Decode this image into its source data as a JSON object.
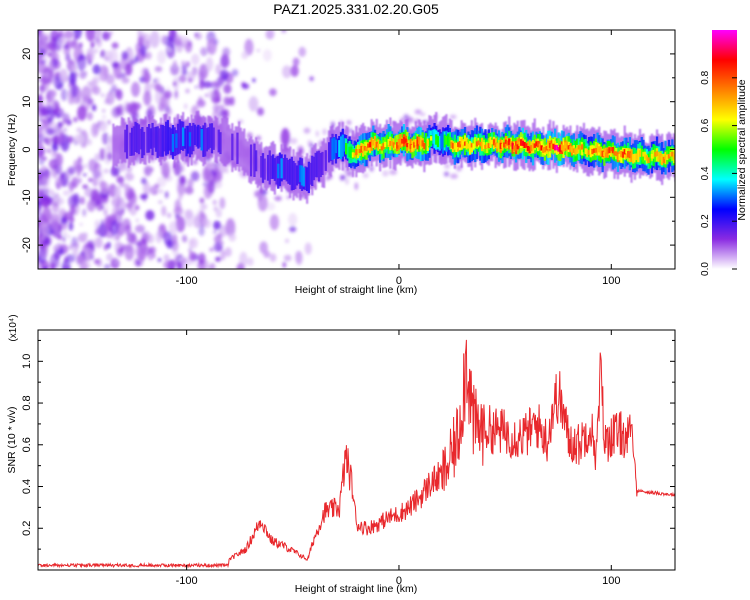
{
  "title": "PAZ1.2025.331.02.20.G05",
  "chart_data": [
    {
      "type": "heatmap",
      "xlabel": "Height of straight line (km)",
      "ylabel": "Frequency (Hz)",
      "xlim": [
        -170,
        130
      ],
      "ylim": [
        -25,
        25
      ],
      "xticks": [
        -100,
        0,
        100
      ],
      "yticks": [
        -20,
        -10,
        0,
        10,
        20
      ],
      "colorbar": {
        "label": "Normalized spectral amplitude",
        "range": [
          0,
          1
        ],
        "ticks": [
          "0.0",
          "0.2",
          "0.4",
          "0.6",
          "0.8"
        ],
        "colors": [
          "#ffffff",
          "#8a2be2",
          "#0000ff",
          "#00ffff",
          "#00ff00",
          "#ffff00",
          "#ff7f00",
          "#ff0000",
          "#ff00ff"
        ]
      },
      "ridge": {
        "x": [
          -135,
          -125,
          -115,
          -105,
          -95,
          -85,
          -75,
          -68,
          -62,
          -56,
          -50,
          -45,
          -40,
          -35,
          -30,
          -25,
          -20,
          -15,
          -10,
          -5,
          0,
          5,
          10,
          15,
          20,
          25,
          35,
          45,
          55,
          65,
          75,
          85,
          95,
          105,
          115,
          130
        ],
        "y": [
          1,
          2,
          2,
          2,
          2.5,
          2,
          0,
          -3,
          -4,
          -4,
          -5,
          -6,
          -4,
          -2,
          1,
          0,
          -1,
          1,
          1,
          1,
          1.5,
          1,
          1,
          2,
          2,
          1,
          1,
          1,
          1,
          0.5,
          0.5,
          0,
          -0.5,
          -1,
          -1.5,
          -1.5
        ],
        "peak_amplitude": [
          0.2,
          0.35,
          0.35,
          0.45,
          0.45,
          0.3,
          0.25,
          0.3,
          0.35,
          0.45,
          0.4,
          0.45,
          0.35,
          0.3,
          0.5,
          0.6,
          0.75,
          0.85,
          0.75,
          0.8,
          0.9,
          0.85,
          0.9,
          0.6,
          0.5,
          0.8,
          0.75,
          0.8,
          0.9,
          0.85,
          0.95,
          0.75,
          0.8,
          0.85,
          0.7,
          0.8
        ]
      }
    },
    {
      "type": "line",
      "xlabel": "Height of straight line (km)",
      "ylabel": "SNR (10 * v/v)",
      "y_multiplier": "(x10⁴)",
      "xlim": [
        -170,
        130
      ],
      "ylim": [
        0,
        1.15
      ],
      "xticks": [
        -100,
        0,
        100
      ],
      "yticks": [
        0.2,
        0.4,
        0.6,
        0.8,
        1.0
      ],
      "ytick_labels": [
        "0.2",
        "0.4",
        "0.6",
        "0.8",
        "1.0"
      ],
      "color": "#e8282c",
      "series": [
        {
          "x": [
            -170,
            -150,
            -130,
            -110,
            -95,
            -80,
            -72,
            -68,
            -65,
            -60,
            -55,
            -48,
            -43,
            -40,
            -35,
            -28,
            -25,
            -22,
            -20,
            -15,
            -10,
            -5,
            0,
            5,
            10,
            15,
            20,
            23,
            25,
            28,
            30,
            32,
            35,
            37,
            40,
            45,
            50,
            55,
            60,
            65,
            70,
            72,
            75,
            78,
            80,
            85,
            90,
            93,
            95,
            97,
            100,
            105,
            108,
            110,
            112,
            120,
            130
          ],
          "y": [
            0.02,
            0.02,
            0.02,
            0.02,
            0.03,
            0.05,
            0.1,
            0.18,
            0.24,
            0.14,
            0.12,
            0.08,
            0.05,
            0.15,
            0.28,
            0.3,
            0.55,
            0.4,
            0.22,
            0.2,
            0.22,
            0.25,
            0.27,
            0.3,
            0.35,
            0.42,
            0.45,
            0.5,
            0.55,
            0.65,
            0.85,
            1.03,
            0.7,
            0.68,
            0.68,
            0.67,
            0.66,
            0.64,
            0.65,
            0.7,
            0.62,
            0.75,
            0.85,
            0.72,
            0.62,
            0.6,
            0.7,
            0.55,
            0.95,
            0.6,
            0.65,
            0.65,
            0.64,
            0.63,
            0.38,
            0.37,
            0.36
          ]
        }
      ]
    }
  ]
}
